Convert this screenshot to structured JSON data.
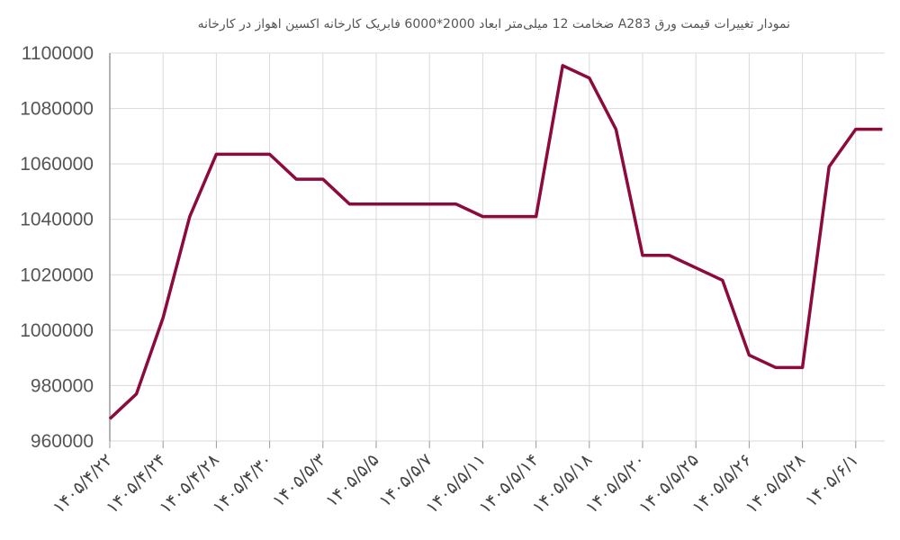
{
  "chart_data": {
    "type": "line",
    "title": "نمودار تغییرات قیمت ورق A283  ضخامت 12 میلی‌متر ابعاد 2000*6000 فابریک کارخانه اکسین اهواز در کارخانه",
    "categories": [
      "۱۴۰۵/۴/۲۲",
      null,
      "۱۴۰۵/۴/۲۴",
      null,
      "۱۴۰۵/۴/۲۸",
      null,
      "۱۴۰۵/۴/۳۰",
      null,
      "۱۴۰۵/۵/۳",
      null,
      "۱۴۰۵/۵/۵",
      null,
      "۱۴۰۵/۵/۷",
      null,
      "۱۴۰۵/۵/۱۱",
      null,
      "۱۴۰۵/۵/۱۴",
      null,
      "۱۴۰۵/۵/۱۸",
      null,
      "۱۴۰۵/۵/۲۰",
      null,
      "۱۴۰۵/۵/۲۵",
      null,
      "۱۴۰۵/۵/۲۶",
      null,
      "۱۴۰۵/۵/۲۸",
      null,
      "۱۴۰۵/۶/۱",
      null
    ],
    "values": [
      968000,
      977000,
      1004500,
      1041000,
      1063500,
      1063500,
      1063500,
      1054500,
      1054500,
      1045500,
      1045500,
      1045500,
      1045500,
      1045500,
      1041000,
      1041000,
      1041000,
      1095500,
      1091000,
      1072500,
      1027000,
      1027000,
      1022500,
      1018000,
      991000,
      986500,
      986500,
      1059000,
      1072500,
      1072500
    ],
    "color": "#8c0a3c",
    "ylim": [
      960000,
      1100000
    ],
    "yticks": [
      960000,
      980000,
      1000000,
      1020000,
      1040000,
      1060000,
      1080000,
      1100000
    ],
    "grid": true
  }
}
